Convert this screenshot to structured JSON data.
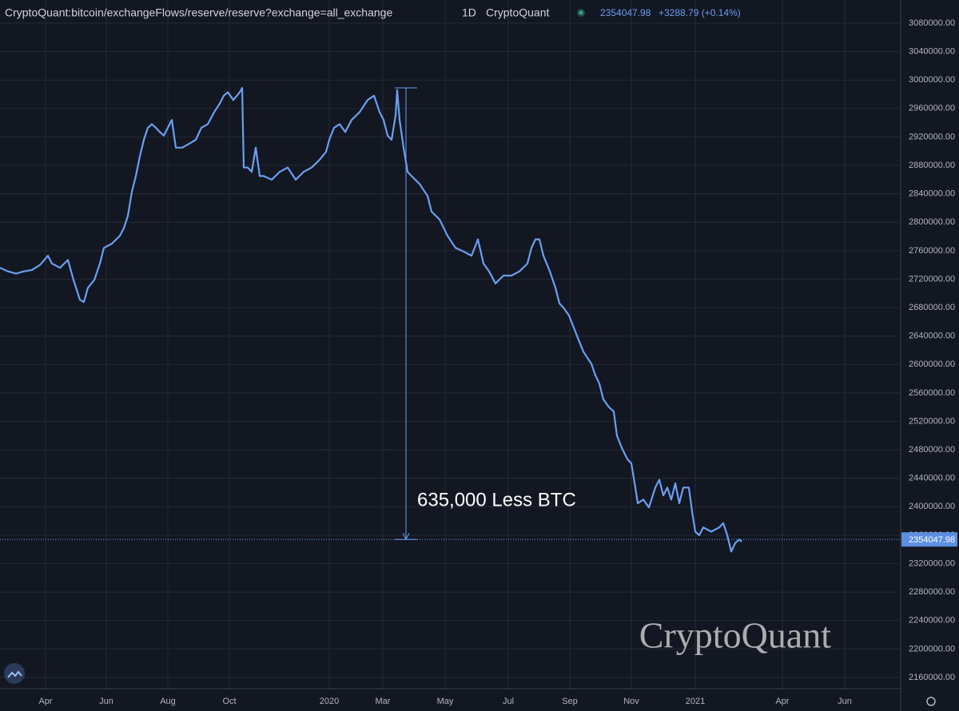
{
  "chart_data": {
    "type": "line",
    "header": {
      "symbol": "CryptoQuant:bitcoin/exchangeFlows/reserve/reserve?exchange=all_exchange",
      "interval": "1D",
      "source": "CryptoQuant",
      "change": "+3288.79 (+0.14%)"
    },
    "watermark": "CryptoQuant",
    "last_value": 2354047.98,
    "annotation": {
      "text": "635,000 Less BTC",
      "x": 508,
      "from": 2989000,
      "to": 2354047.98
    },
    "xlim": [
      0,
      1126
    ],
    "ylim": [
      2146500,
      3112600
    ],
    "grid": true,
    "xticks": [
      {
        "value": 57,
        "label": "Apr"
      },
      {
        "value": 133,
        "label": "Jun"
      },
      {
        "value": 210,
        "label": "Aug"
      },
      {
        "value": 287,
        "label": "Oct"
      },
      {
        "value": 412,
        "label": "2020"
      },
      {
        "value": 479,
        "label": "Mar"
      },
      {
        "value": 557,
        "label": "May"
      },
      {
        "value": 636,
        "label": "Jul"
      },
      {
        "value": 713,
        "label": "Sep"
      },
      {
        "value": 790,
        "label": "Nov"
      },
      {
        "value": 870,
        "label": "2021"
      },
      {
        "value": 979,
        "label": "Apr"
      },
      {
        "value": 1057,
        "label": "Jun"
      }
    ],
    "yticks": [
      {
        "value": 2160000,
        "label": "2160000.00"
      },
      {
        "value": 2200000,
        "label": "2200000.00"
      },
      {
        "value": 2240000,
        "label": "2240000.00"
      },
      {
        "value": 2280000,
        "label": "2280000.00"
      },
      {
        "value": 2320000,
        "label": "2320000.00"
      },
      {
        "value": 2360000,
        "label": "2360000.00"
      },
      {
        "value": 2400000,
        "label": "2400000.00"
      },
      {
        "value": 2440000,
        "label": "2440000.00"
      },
      {
        "value": 2480000,
        "label": "2480000.00"
      },
      {
        "value": 2520000,
        "label": "2520000.00"
      },
      {
        "value": 2560000,
        "label": "2560000.00"
      },
      {
        "value": 2600000,
        "label": "2600000.00"
      },
      {
        "value": 2640000,
        "label": "2640000.00"
      },
      {
        "value": 2680000,
        "label": "2680000.00"
      },
      {
        "value": 2720000,
        "label": "2720000.00"
      },
      {
        "value": 2760000,
        "label": "2760000.00"
      },
      {
        "value": 2800000,
        "label": "2800000.00"
      },
      {
        "value": 2840000,
        "label": "2840000.00"
      },
      {
        "value": 2880000,
        "label": "2880000.00"
      },
      {
        "value": 2920000,
        "label": "2920000.00"
      },
      {
        "value": 2960000,
        "label": "2960000.00"
      },
      {
        "value": 3000000,
        "label": "3000000.00"
      },
      {
        "value": 3040000,
        "label": "3040000.00"
      },
      {
        "value": 3080000,
        "label": "3080000.00"
      }
    ],
    "x": [
      0,
      10,
      20,
      30,
      40,
      50,
      60,
      65,
      75,
      85,
      92,
      100,
      105,
      110,
      118,
      125,
      130,
      140,
      150,
      155,
      160,
      165,
      170,
      175,
      180,
      185,
      190,
      195,
      200,
      205,
      210,
      215,
      220,
      228,
      236,
      245,
      252,
      260,
      268,
      275,
      280,
      285,
      292,
      300,
      303,
      305,
      310,
      315,
      320,
      325,
      330,
      340,
      350,
      360,
      370,
      380,
      390,
      400,
      408,
      412,
      418,
      425,
      432,
      440,
      450,
      460,
      468,
      475,
      480,
      485,
      490,
      495,
      497,
      500,
      505,
      510,
      515,
      525,
      535,
      540,
      550,
      560,
      570,
      580,
      590,
      598,
      605,
      612,
      620,
      630,
      640,
      650,
      660,
      665,
      670,
      675,
      680,
      688,
      695,
      700,
      705,
      712,
      720,
      730,
      740,
      745,
      750,
      755,
      762,
      768,
      772,
      778,
      785,
      790,
      795,
      798,
      805,
      812,
      820,
      825,
      830,
      835,
      840,
      845,
      850,
      855,
      862,
      866,
      870,
      875,
      880,
      890,
      900,
      905,
      910,
      915,
      920,
      925,
      928
    ],
    "series": [
      {
        "color": "#6a9ff0",
        "values": [
          2736000,
          2731000,
          2728000,
          2731000,
          2733000,
          2740000,
          2753000,
          2742000,
          2736000,
          2747000,
          2719000,
          2691000,
          2688000,
          2708000,
          2719000,
          2742000,
          2764000,
          2770000,
          2781000,
          2792000,
          2809000,
          2843000,
          2865000,
          2893000,
          2916000,
          2933000,
          2938000,
          2933000,
          2927000,
          2922000,
          2933000,
          2944000,
          2905000,
          2905000,
          2910000,
          2916000,
          2933000,
          2938000,
          2955000,
          2967000,
          2978000,
          2983000,
          2972000,
          2983000,
          2989000,
          2877000,
          2877000,
          2871000,
          2905000,
          2865000,
          2865000,
          2860000,
          2871000,
          2877000,
          2860000,
          2871000,
          2877000,
          2888000,
          2899000,
          2916000,
          2933000,
          2938000,
          2927000,
          2944000,
          2955000,
          2972000,
          2978000,
          2955000,
          2944000,
          2922000,
          2916000,
          2950000,
          2986000,
          2944000,
          2905000,
          2871000,
          2865000,
          2854000,
          2837000,
          2815000,
          2804000,
          2781000,
          2764000,
          2759000,
          2753000,
          2776000,
          2742000,
          2731000,
          2714000,
          2725000,
          2725000,
          2731000,
          2742000,
          2764000,
          2776000,
          2776000,
          2753000,
          2731000,
          2708000,
          2686000,
          2680000,
          2669000,
          2646000,
          2618000,
          2601000,
          2585000,
          2573000,
          2551000,
          2540000,
          2534000,
          2500000,
          2483000,
          2467000,
          2461000,
          2427000,
          2405000,
          2410000,
          2399000,
          2427000,
          2438000,
          2416000,
          2427000,
          2410000,
          2433000,
          2405000,
          2427000,
          2427000,
          2393000,
          2365000,
          2360000,
          2371000,
          2365000,
          2371000,
          2377000,
          2360000,
          2337000,
          2349000,
          2354000,
          2351000
        ]
      }
    ]
  }
}
